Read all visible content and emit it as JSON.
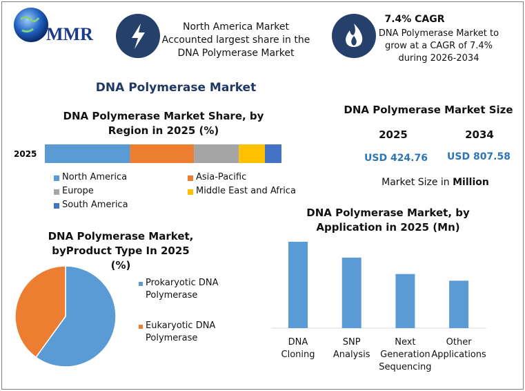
{
  "logo": {
    "text": "MMR"
  },
  "highlights": [
    {
      "lines": [
        "North America Market",
        "Accounted largest share in the",
        "DNA Polymerase Market"
      ]
    },
    {
      "title": "7.4% CAGR",
      "lines": [
        "DNA Polymerase Market to",
        "grow at a CAGR of 7.4%",
        "during 2026-2034"
      ]
    }
  ],
  "title": "DNA Polymerase Market",
  "market_size": {
    "title": "DNA Polymerase Market Size",
    "years": [
      "2025",
      "2034"
    ],
    "values": [
      "USD 424.76",
      "USD 807.58"
    ],
    "note": "Market Size in",
    "note_unit": "Million"
  },
  "chart_data": [
    {
      "type": "stacked_bar",
      "title": "DNA Polymerase Market Share, by Region in 2025 (%)",
      "categories": [
        "2025"
      ],
      "series": [
        {
          "name": "North America",
          "color": "#5b9bd5",
          "values": [
            36
          ]
        },
        {
          "name": "Asia-Pacific",
          "color": "#ed7d31",
          "values": [
            27
          ]
        },
        {
          "name": "Europe",
          "color": "#a5a5a5",
          "values": [
            19
          ]
        },
        {
          "name": "Middle East and Africa",
          "color": "#ffc000",
          "values": [
            11
          ]
        },
        {
          "name": "South America",
          "color": "#4472c4",
          "values": [
            7
          ]
        }
      ]
    },
    {
      "type": "pie",
      "title": "DNA Polymerase Market, byProduct Type In 2025 (%)",
      "categories": [
        "Prokaryotic DNA Polymerase",
        "Eukaryotic DNA Polymerase"
      ],
      "values": [
        60,
        40
      ],
      "colors": [
        "#5b9bd5",
        "#ed7d31"
      ]
    },
    {
      "type": "bar",
      "title": "DNA Polymerase Market, by Application in 2025 (Mn)",
      "categories": [
        "DNA Cloning",
        "SNP Analysis",
        "Next Generation Sequencing",
        "Other Applications"
      ],
      "values": [
        142,
        116,
        89,
        78
      ],
      "color": "#5b9bd5"
    }
  ]
}
